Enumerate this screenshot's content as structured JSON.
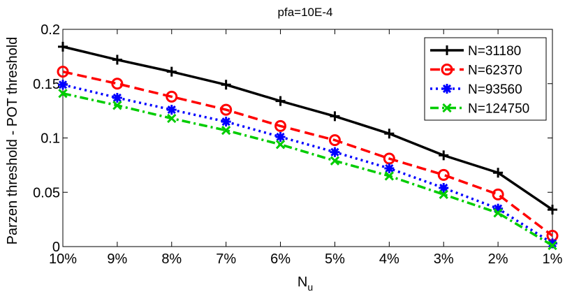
{
  "chart_data": {
    "type": "line",
    "title": "pfa=10E-4",
    "xlabel_main": "N",
    "xlabel_sub": "u",
    "ylabel": "Parzen threshold - POT threshold",
    "categories": [
      "10%",
      "9%",
      "8%",
      "7%",
      "6%",
      "5%",
      "4%",
      "3%",
      "2%",
      "1%"
    ],
    "ylim": [
      0,
      0.2
    ],
    "yticks": [
      0,
      0.05,
      0.1,
      0.15,
      0.2
    ],
    "ytick_labels": [
      "0",
      "0.05",
      "0.1",
      "0.15",
      "0.2"
    ],
    "grid": false,
    "legend_position": "top-right",
    "series": [
      {
        "name": "N=31180",
        "color": "#000000",
        "line_style": "solid",
        "marker": "plus",
        "values": [
          0.184,
          0.172,
          0.161,
          0.149,
          0.134,
          0.12,
          0.104,
          0.084,
          0.068,
          0.034
        ]
      },
      {
        "name": "N=62370",
        "color": "#ff0000",
        "line_style": "dashed",
        "marker": "circle",
        "values": [
          0.161,
          0.15,
          0.138,
          0.126,
          0.111,
          0.098,
          0.081,
          0.066,
          0.048,
          0.01
        ]
      },
      {
        "name": "N=93560",
        "color": "#0000ff",
        "line_style": "dotted",
        "marker": "asterisk",
        "values": [
          0.149,
          0.137,
          0.126,
          0.115,
          0.101,
          0.087,
          0.072,
          0.054,
          0.035,
          0.003
        ]
      },
      {
        "name": "N=124750",
        "color": "#00cc00",
        "line_style": "dashdot",
        "marker": "x",
        "values": [
          0.141,
          0.13,
          0.118,
          0.107,
          0.094,
          0.079,
          0.065,
          0.048,
          0.031,
          0.001
        ]
      }
    ]
  }
}
